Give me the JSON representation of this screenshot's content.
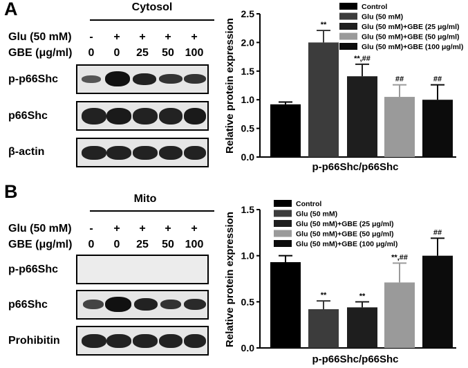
{
  "panels": [
    {
      "letter": "A",
      "compartment": "Cytosol",
      "treatments": {
        "glu_label": "Glu (50 mM)",
        "gbe_label": "GBE (μg/ml)",
        "glu": [
          "-",
          "+",
          "+",
          "+",
          "+"
        ],
        "gbe": [
          "0",
          "0",
          "25",
          "50",
          "100"
        ]
      },
      "blots": [
        "p-p66Shc",
        "p66Shc",
        "β-actin"
      ]
    },
    {
      "letter": "B",
      "compartment": "Mito",
      "treatments": {
        "glu_label": "Glu (50 mM)",
        "gbe_label": "GBE (μg/ml)",
        "glu": [
          "-",
          "+",
          "+",
          "+",
          "+"
        ],
        "gbe": [
          "0",
          "0",
          "25",
          "50",
          "100"
        ]
      },
      "blots": [
        "p-p66Shc",
        "p66Shc",
        "Prohibitin"
      ]
    }
  ],
  "colors": {
    "control": "#000000",
    "glu": "#3c3c3c",
    "gbe25": "#1e1e1e",
    "gbe50": "#9a9a9a",
    "gbe100": "#0c0c0c"
  },
  "chart_data": [
    {
      "type": "bar",
      "ylabel": "Relative protein expression",
      "xlabel": "p-p66Shc/p66Shc",
      "ylim": [
        0,
        2.5
      ],
      "yticks": [
        "0.0",
        "0.5",
        "1.0",
        "1.5",
        "2.0",
        "2.5"
      ],
      "legend_position": "top-right",
      "legend": [
        "Control",
        "Glu (50 mM)",
        "Glu (50 mM)+GBE (25 μg/ml)",
        "Glu (50 mM)+GBE (50 μg/ml)",
        "Glu (50 mM)+GBE (100 μg/ml)"
      ],
      "values": [
        0.92,
        2.0,
        1.41,
        1.05,
        1.0
      ],
      "errors": [
        0.04,
        0.21,
        0.21,
        0.21,
        0.26
      ],
      "annotations": [
        "",
        "**",
        "**,##",
        "##",
        "##"
      ]
    },
    {
      "type": "bar",
      "ylabel": "Relative protein expression",
      "xlabel": "p-p66Shc/p66Shc",
      "ylim": [
        0,
        1.5
      ],
      "yticks": [
        "0.0",
        "0.5",
        "1.0",
        "1.5"
      ],
      "legend_position": "top-right",
      "legend": [
        "Control",
        "Glu (50 mM)",
        "Glu (50 mM)+GBE (25 μg/ml)",
        "Glu (50 mM)+GBE (50 μg/ml)",
        "Glu (50 mM)+GBE (100 μg/ml)"
      ],
      "values": [
        0.93,
        0.42,
        0.44,
        0.71,
        1.0
      ],
      "errors": [
        0.07,
        0.09,
        0.06,
        0.21,
        0.19
      ],
      "annotations": [
        "",
        "**",
        "**",
        "**,##",
        "##"
      ]
    }
  ]
}
